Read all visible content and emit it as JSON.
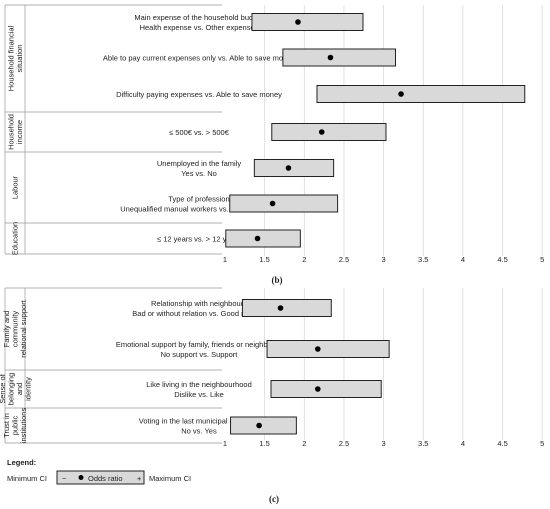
{
  "chart_data": [
    {
      "type": "forest",
      "panel_label": "(b)",
      "xlim": [
        1,
        5
      ],
      "xticks": [
        "1",
        "1.5",
        "2",
        "2.5",
        "3",
        "3.5",
        "4",
        "4.5",
        "5"
      ],
      "groups": [
        {
          "name": "Household financial situation",
          "rows": [
            {
              "label": [
                "Main expense of the household budget",
                "Health expense vs. Other expenses"
              ],
              "or": 1.92,
              "lo": 1.34,
              "hi": 2.74
            },
            {
              "label": [
                "Able to pay current expenses only vs. Able to save money"
              ],
              "or": 2.33,
              "lo": 1.73,
              "hi": 3.15
            },
            {
              "label": [
                "Difficulty paying expenses vs. Able to save money"
              ],
              "or": 3.22,
              "lo": 2.16,
              "hi": 4.78
            }
          ]
        },
        {
          "name": "Household income",
          "rows": [
            {
              "label": [
                "≤ 500€ vs. > 500€"
              ],
              "or": 2.22,
              "lo": 1.59,
              "hi": 3.03
            }
          ]
        },
        {
          "name": "Labour",
          "rows": [
            {
              "label": [
                "Unemployed in the family",
                "Yes vs. No"
              ],
              "or": 1.8,
              "lo": 1.37,
              "hi": 2.37
            },
            {
              "label": [
                "Type of profession",
                "Unequalified manual workers vs. Other workers"
              ],
              "or": 1.6,
              "lo": 1.06,
              "hi": 2.42
            }
          ]
        },
        {
          "name": "Education",
          "rows": [
            {
              "label": [
                "≤ 12 years vs. > 12 years"
              ],
              "or": 1.41,
              "lo": 1.01,
              "hi": 1.95
            }
          ]
        }
      ]
    },
    {
      "type": "forest",
      "panel_label": "(c)",
      "xlim": [
        1,
        5
      ],
      "xticks": [
        "1",
        "1.5",
        "2",
        "2.5",
        "3",
        "3.5",
        "4",
        "4.5",
        "5"
      ],
      "groups": [
        {
          "name": "Family and community relational support",
          "rows": [
            {
              "label": [
                "Relationship with neighbours",
                "Bad or without relation vs. Good relation"
              ],
              "or": 1.7,
              "lo": 1.22,
              "hi": 2.34
            },
            {
              "label": [
                "Emotional support by family, friends or neighbours",
                "No support vs. Support"
              ],
              "or": 2.17,
              "lo": 1.53,
              "hi": 3.07
            }
          ]
        },
        {
          "name": "Sense of belonging and identity",
          "rows": [
            {
              "label": [
                "Like living in the neighbourhood",
                "Dislike vs. Like"
              ],
              "or": 2.17,
              "lo": 1.58,
              "hi": 2.97
            }
          ]
        },
        {
          "name": "Trust in public institutions",
          "rows": [
            {
              "label": [
                "Voting in the last municipal elections",
                "No vs. Yes"
              ],
              "or": 1.43,
              "lo": 1.07,
              "hi": 1.9
            }
          ]
        }
      ]
    }
  ],
  "legend": {
    "title": "Legend:",
    "min_label": "Minimum CI",
    "max_label": "Maximum CI",
    "point_label": "Odds ratio",
    "minus": "−",
    "plus": "+"
  }
}
